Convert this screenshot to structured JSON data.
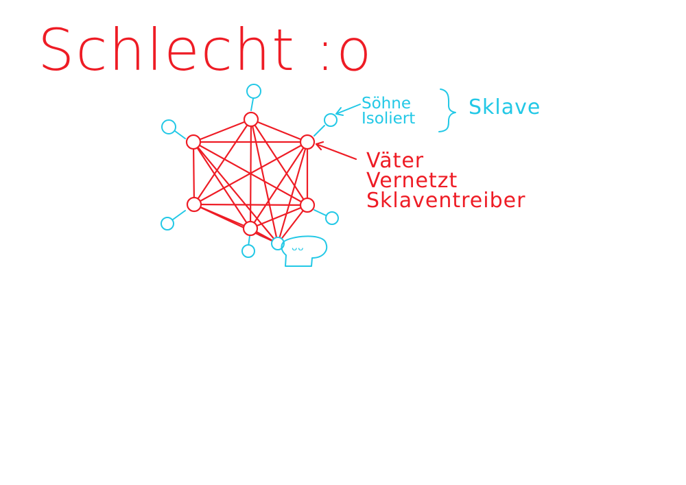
{
  "heading": "Schlecht :o",
  "sons": {
    "line1": "Söhne",
    "line2": "Isoliert",
    "group_label": "Sklave"
  },
  "fathers": {
    "line1": "Väter",
    "line2": "Vernetzt",
    "line3": "Sklaventreiber"
  },
  "face_glyph": "ᵕᵕ",
  "colors": {
    "red": "#ee1c25",
    "cyan": "#22c8e6",
    "background": "#ffffff"
  }
}
